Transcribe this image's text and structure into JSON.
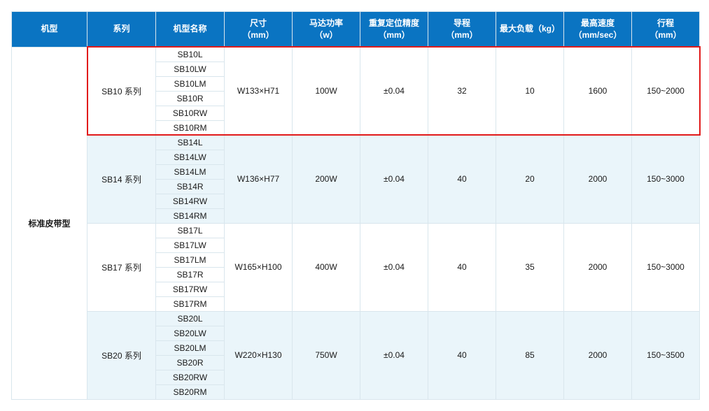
{
  "header": {
    "model_type": "机型",
    "series": "系列",
    "model_name": "机型名称",
    "size": "尺寸",
    "size_unit": "（mm）",
    "motor_power": "马达功率",
    "motor_power_unit": "（w）",
    "repeat_precision": "重复定位精度",
    "repeat_precision_unit": "（mm）",
    "lead": "导程",
    "lead_unit": "（mm）",
    "max_load": "最大负载（kg）",
    "max_speed": "最高速度",
    "max_speed_unit": "（mm/sec）",
    "stroke": "行程",
    "stroke_unit": "（mm）"
  },
  "category": "标准皮带型",
  "groups": [
    {
      "series": "SB10 系列",
      "models": [
        "SB10L",
        "SB10LW",
        "SB10LM",
        "SB10R",
        "SB10RW",
        "SB10RM"
      ],
      "size": "W133×H71",
      "power": "100W",
      "precision": "±0.04",
      "lead": "32",
      "load": "10",
      "speed": "1600",
      "stroke": "150~2000",
      "alt": false,
      "highlight": true
    },
    {
      "series": "SB14 系列",
      "models": [
        "SB14L",
        "SB14LW",
        "SB14LM",
        "SB14R",
        "SB14RW",
        "SB14RM"
      ],
      "size": "W136×H77",
      "power": "200W",
      "precision": "±0.04",
      "lead": "40",
      "load": "20",
      "speed": "2000",
      "stroke": "150~3000",
      "alt": true
    },
    {
      "series": "SB17 系列",
      "models": [
        "SB17L",
        "SB17LW",
        "SB17LM",
        "SB17R",
        "SB17RW",
        "SB17RM"
      ],
      "size": "W165×H100",
      "power": "400W",
      "precision": "±0.04",
      "lead": "40",
      "load": "35",
      "speed": "2000",
      "stroke": "150~3000",
      "alt": false
    },
    {
      "series": "SB20 系列",
      "models": [
        "SB20L",
        "SB20LW",
        "SB20LM",
        "SB20R",
        "SB20RW",
        "SB20RM"
      ],
      "size": "W220×H130",
      "power": "750W",
      "precision": "±0.04",
      "lead": "40",
      "load": "85",
      "speed": "2000",
      "stroke": "150~3500",
      "alt": true
    }
  ],
  "colors": {
    "header_bg": "#0a74c2",
    "header_text": "#ffffff",
    "border": "#d9e6ed",
    "alt_row": "#eaf5fa",
    "highlight_border": "#e11a1a"
  }
}
